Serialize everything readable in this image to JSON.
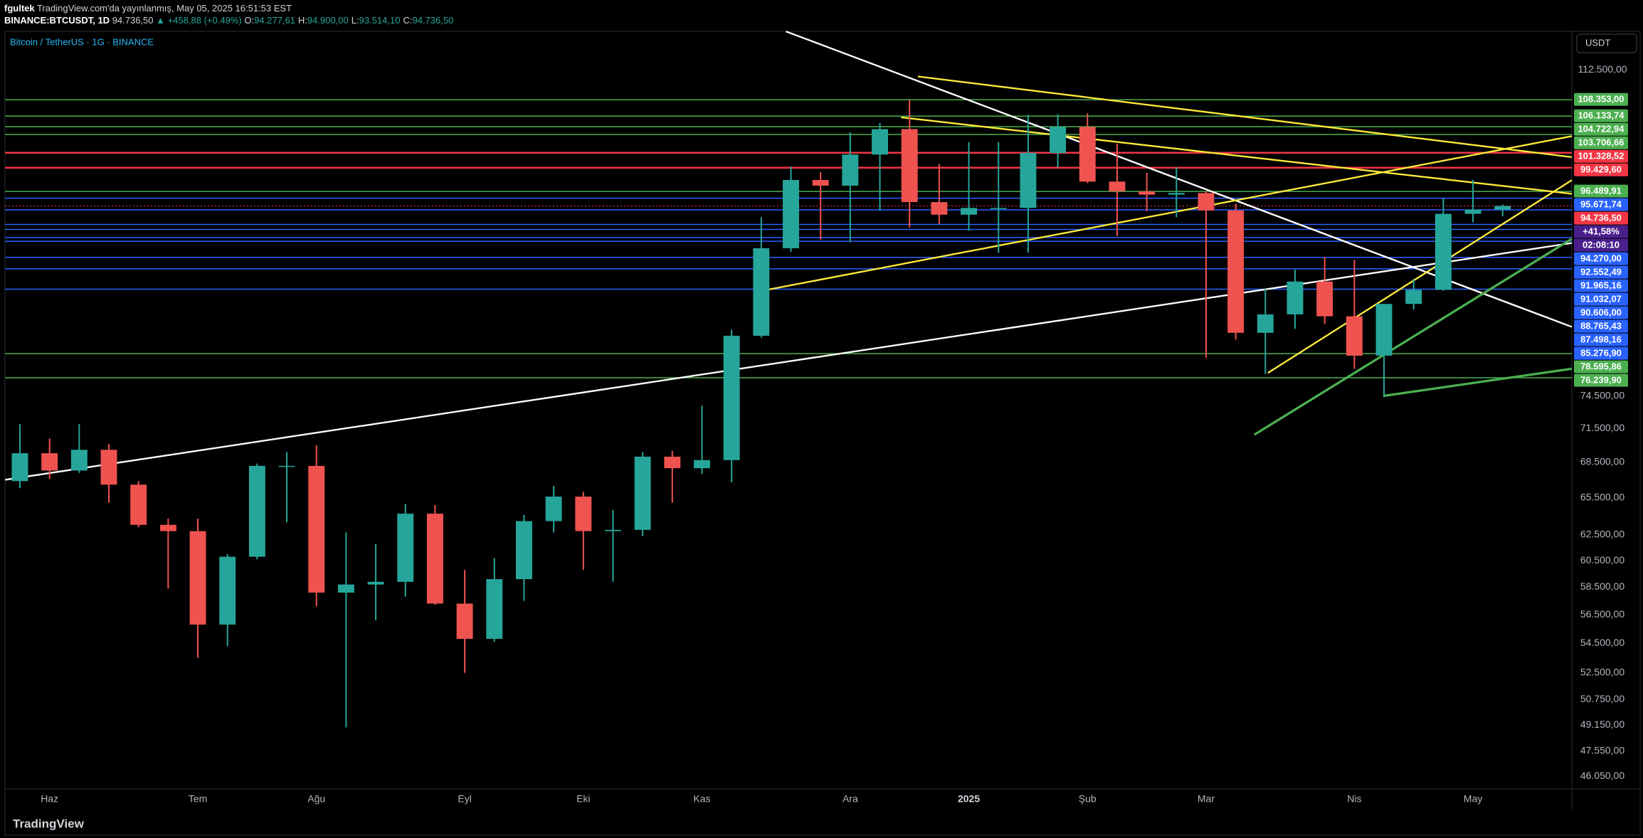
{
  "header": {
    "author": "fgultek",
    "published": "TradingView.com'da yayınlanmış, May 05, 2025 16:51:53 EST",
    "symbol": "BINANCE:BTCUSDT, 1D",
    "price": "94.736,50",
    "change": "▲ +458,88 (+0.49%)",
    "ohlc": [
      {
        "key": "O:",
        "value": "94.277,61"
      },
      {
        "key": "H:",
        "value": "94.900,00"
      },
      {
        "key": "L:",
        "value": "93.514,10"
      },
      {
        "key": "C:",
        "value": "94.736,50"
      }
    ]
  },
  "chart_data": {
    "type": "candlestick",
    "title": "Bitcoin / TetherUS · 1G · BINANCE",
    "currency": "USDT",
    "log_scale": true,
    "grid": false,
    "up_color": "#26a69a",
    "down_color": "#ef5350",
    "categories": [
      null,
      "Haz",
      null,
      null,
      null,
      null,
      "Tem",
      null,
      null,
      null,
      "Ağu",
      null,
      null,
      null,
      null,
      "Eyl",
      null,
      null,
      null,
      "Eki",
      null,
      null,
      null,
      "Kas",
      null,
      null,
      null,
      null,
      "Ara",
      null,
      null,
      null,
      "2025",
      null,
      null,
      null,
      "Şub",
      null,
      null,
      null,
      "Mar",
      null,
      null,
      null,
      null,
      "Nis",
      null,
      null,
      null,
      "May",
      null
    ],
    "open": [
      66900,
      69300,
      67800,
      69600,
      66600,
      63300,
      62800,
      55800,
      60800,
      68200,
      68200,
      58100,
      58700,
      58900,
      64200,
      57300,
      54800,
      59100,
      63600,
      65600,
      62800,
      62900,
      69000,
      68000,
      68700,
      80400,
      89800,
      97900,
      97200,
      101100,
      104400,
      95200,
      93700,
      94500,
      94500,
      101300,
      104700,
      97700,
      96500,
      96100,
      96300,
      94200,
      80700,
      82600,
      86100,
      82400,
      78400,
      83700,
      85200,
      93800,
      94300
    ],
    "high": [
      71900,
      70600,
      71900,
      70100,
      66900,
      63800,
      63800,
      61000,
      68400,
      69400,
      70000,
      62700,
      61800,
      65000,
      64900,
      59800,
      60700,
      64100,
      66500,
      66000,
      64500,
      69400,
      69500,
      73600,
      81000,
      93400,
      99600,
      98900,
      104000,
      105200,
      108350,
      99900,
      102700,
      102700,
      106300,
      106400,
      106500,
      102500,
      98800,
      99500,
      96500,
      95000,
      85300,
      87400,
      88800,
      88500,
      83700,
      86400,
      95700,
      97900,
      94900
    ],
    "low": [
      66300,
      67100,
      67600,
      65100,
      63100,
      58400,
      53500,
      54300,
      60600,
      63500,
      57100,
      49000,
      56100,
      57800,
      57200,
      52500,
      54600,
      57500,
      62700,
      59800,
      58900,
      62400,
      65100,
      67500,
      66800,
      80200,
      89400,
      90800,
      90500,
      94200,
      92200,
      92600,
      91800,
      89300,
      89300,
      99500,
      97500,
      91200,
      94100,
      93400,
      78200,
      80000,
      76600,
      81100,
      81600,
      77100,
      74500,
      83100,
      85100,
      92800,
      93514.1
    ],
    "close": [
      69300,
      67800,
      69600,
      66600,
      63300,
      62800,
      55800,
      60800,
      68200,
      68200,
      58100,
      58700,
      58900,
      64200,
      57300,
      54800,
      59100,
      63600,
      65600,
      62800,
      62900,
      69000,
      68000,
      68700,
      80400,
      89800,
      97900,
      97200,
      101100,
      104400,
      95200,
      93700,
      94500,
      94500,
      101300,
      104700,
      97700,
      96500,
      96100,
      96300,
      94200,
      80700,
      82600,
      86100,
      82400,
      78400,
      83700,
      85200,
      93800,
      94300,
      94736.5
    ],
    "ylim": [
      45330,
      118150
    ],
    "yticks": [
      {
        "value": 112500,
        "label": "112.500,00"
      },
      {
        "value": 74500,
        "label": "74.500,00"
      },
      {
        "value": 71500,
        "label": "71.500,00"
      },
      {
        "value": 68500,
        "label": "68.500,00"
      },
      {
        "value": 65500,
        "label": "65.500,00"
      },
      {
        "value": 62500,
        "label": "62.500,00"
      },
      {
        "value": 60500,
        "label": "60.500,00"
      },
      {
        "value": 58500,
        "label": "58.500,00"
      },
      {
        "value": 56500,
        "label": "56.500,00"
      },
      {
        "value": 54500,
        "label": "54.500,00"
      },
      {
        "value": 52500,
        "label": "52.500,00"
      },
      {
        "value": 50750,
        "label": "50.750,00"
      },
      {
        "value": 49150,
        "label": "49.150,00"
      },
      {
        "value": 47550,
        "label": "47.550,00"
      },
      {
        "value": 46050,
        "label": "46.050,00"
      }
    ],
    "levels": [
      {
        "value": 108353,
        "label": "108.353,00",
        "color": "#4caf50"
      },
      {
        "value": 106133.74,
        "label": "106.133,74",
        "color": "#4caf50"
      },
      {
        "value": 104722.94,
        "label": "104.722,94",
        "color": "#4caf50"
      },
      {
        "value": 103706.66,
        "label": "103.706,66",
        "color": "#4caf50"
      },
      {
        "value": 101328.52,
        "label": "101.328,52",
        "color": "#f23645"
      },
      {
        "value": 99429.6,
        "label": "99.429,60",
        "color": "#f23645"
      },
      {
        "value": 96489.91,
        "label": "96.489,91",
        "color": "#4caf50"
      },
      {
        "value": 95671.74,
        "label": "95.671,74",
        "color": "#2962ff"
      },
      {
        "value": 94270,
        "label": "94.270,00",
        "color": "#2962ff"
      },
      {
        "value": 92552.49,
        "label": "92.552,49",
        "color": "#2962ff"
      },
      {
        "value": 91965.16,
        "label": "91.965,16",
        "color": "#2962ff"
      },
      {
        "value": 91032.07,
        "label": "91.032,07",
        "color": "#2962ff"
      },
      {
        "value": 90606,
        "label": "90.606,00",
        "color": "#2962ff"
      },
      {
        "value": 88765.43,
        "label": "88.765,43",
        "color": "#2962ff"
      },
      {
        "value": 87498.16,
        "label": "87.498,16",
        "color": "#2962ff"
      },
      {
        "value": 85276.9,
        "label": "85.276,90",
        "color": "#2962ff"
      },
      {
        "value": 78595.86,
        "label": "78.595,86",
        "color": "#4caf50"
      },
      {
        "value": 76239.9,
        "label": "76.239,90",
        "color": "#4caf50"
      }
    ],
    "last_price": {
      "value": 94736.5,
      "label": "94.736,50",
      "change": "+41,58%",
      "countdown": "02:08:10",
      "color": "#f23645",
      "panel_color": "#4a1f8c"
    }
  },
  "footer": {
    "brand": "TradingView"
  }
}
